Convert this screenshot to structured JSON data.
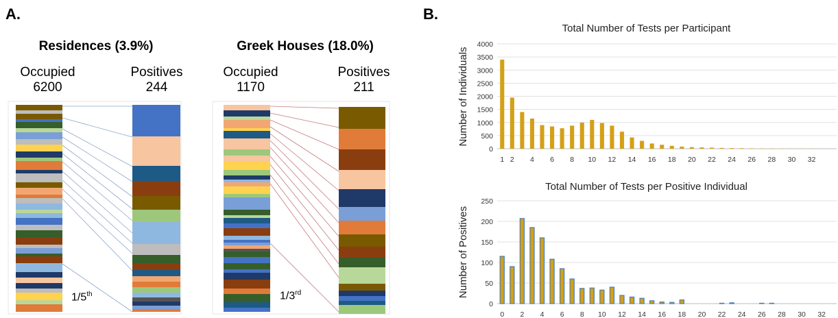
{
  "panel_a": {
    "letter": "A.",
    "residences": {
      "title": "Residences (3.9%)",
      "occupied_label": "Occupied",
      "occupied_value": "6200",
      "positives_label": "Positives",
      "positives_value": "244",
      "ratio_base": "1/5",
      "ratio_sup": "th"
    },
    "greek": {
      "title": "Greek Houses (18.0%)",
      "occupied_label": "Occupied",
      "occupied_value": "1170",
      "positives_label": "Positives",
      "positives_value": "211",
      "ratio_base": "1/3",
      "ratio_sup": "rd"
    }
  },
  "panel_b": {
    "letter": "B."
  },
  "chart_data": [
    {
      "type": "bar",
      "title": "Total Number of Tests per Participant",
      "xlabel": "",
      "ylabel": "Number of Individuals",
      "color": "#d4a017",
      "ylim": [
        0,
        4000
      ],
      "yticks": [
        0,
        500,
        1000,
        1500,
        2000,
        2500,
        3000,
        3500,
        4000
      ],
      "xticks": [
        1,
        2,
        4,
        6,
        8,
        10,
        12,
        14,
        16,
        18,
        20,
        22,
        24,
        26,
        28,
        30,
        32
      ],
      "x": [
        1,
        2,
        3,
        4,
        5,
        6,
        7,
        8,
        9,
        10,
        11,
        12,
        13,
        14,
        15,
        16,
        17,
        18,
        19,
        20,
        21,
        22,
        23,
        24,
        25,
        26,
        27,
        28,
        29,
        30,
        31,
        32,
        33,
        34
      ],
      "values": [
        3400,
        1950,
        1400,
        1150,
        900,
        850,
        780,
        880,
        1000,
        1100,
        980,
        880,
        650,
        430,
        300,
        200,
        150,
        110,
        80,
        60,
        50,
        40,
        30,
        25,
        20,
        15,
        12,
        10,
        8,
        6,
        5,
        4,
        3,
        2
      ]
    },
    {
      "type": "bar",
      "title": "Total Number of Tests per Positive Individual",
      "xlabel": "",
      "ylabel": "Number of Positives",
      "color": "#d4a017",
      "edge_color": "#4a7fb5",
      "ylim": [
        0,
        250
      ],
      "yticks": [
        0,
        50,
        100,
        150,
        200,
        250
      ],
      "xticks": [
        0,
        2,
        4,
        6,
        8,
        10,
        12,
        14,
        16,
        18,
        20,
        22,
        24,
        26,
        28,
        30,
        32
      ],
      "x": [
        0,
        1,
        2,
        3,
        4,
        5,
        6,
        7,
        8,
        9,
        10,
        11,
        12,
        13,
        14,
        15,
        16,
        17,
        18,
        19,
        20,
        21,
        22,
        23,
        24,
        25,
        26,
        27,
        28,
        29,
        30,
        31,
        32,
        33
      ],
      "values": [
        115,
        90,
        207,
        185,
        160,
        108,
        85,
        60,
        37,
        38,
        33,
        40,
        20,
        16,
        13,
        7,
        4,
        3,
        9,
        0,
        0,
        0,
        1,
        2,
        0,
        0,
        1,
        1,
        0,
        0,
        0,
        0,
        0,
        0
      ]
    }
  ]
}
